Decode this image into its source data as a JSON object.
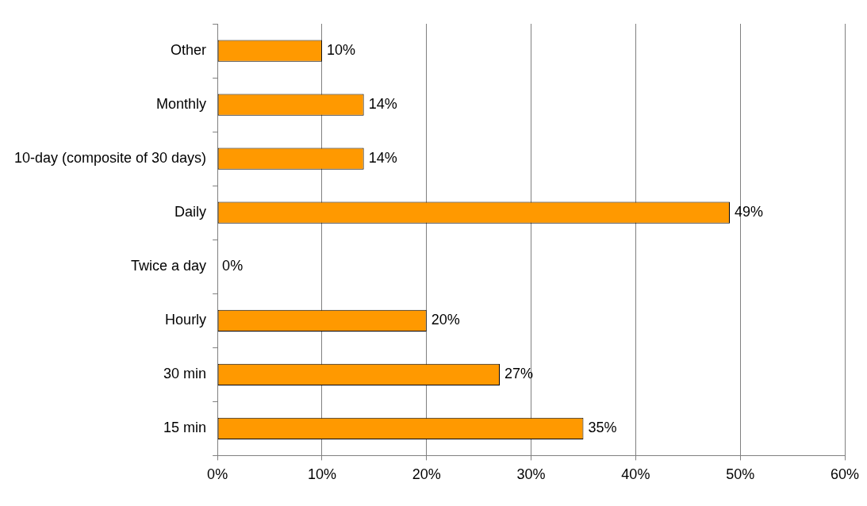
{
  "chart_data": {
    "type": "bar",
    "orientation": "horizontal",
    "categories": [
      "Other",
      "Monthly",
      "10-day (composite of 30 days)",
      "Daily",
      "Twice a day",
      "Hourly",
      "30 min",
      "15 min"
    ],
    "values": [
      10,
      14,
      14,
      49,
      0,
      20,
      27,
      35
    ],
    "value_labels": [
      "10%",
      "14%",
      "14%",
      "49%",
      "0%",
      "20%",
      "27%",
      "35%"
    ],
    "color": "#ff9900",
    "xlim": [
      0,
      60
    ],
    "xticks": [
      {
        "value": 0,
        "label": "0%"
      },
      {
        "value": 10,
        "label": "10%"
      },
      {
        "value": 20,
        "label": "20%"
      },
      {
        "value": 30,
        "label": "30%"
      },
      {
        "value": 40,
        "label": "40%"
      },
      {
        "value": 50,
        "label": "50%"
      },
      {
        "value": 60,
        "label": "60%"
      }
    ],
    "grid": "x",
    "legend": false
  }
}
